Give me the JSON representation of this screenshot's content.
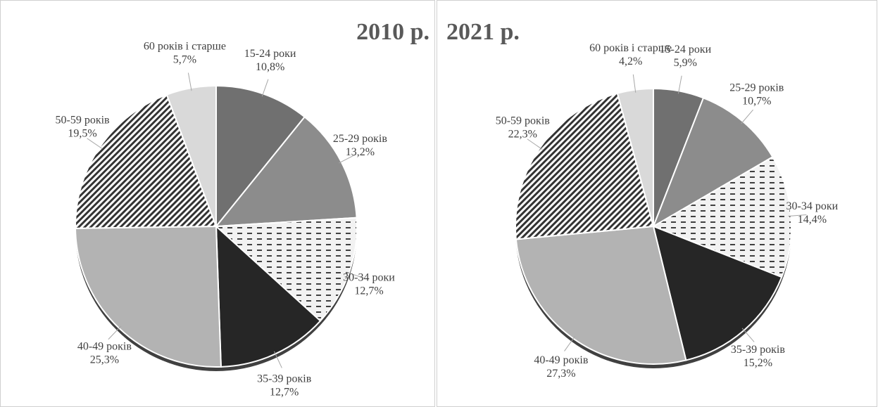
{
  "chart_data": [
    {
      "type": "pie",
      "title": "2010 р.",
      "categories": [
        "15-24 роки",
        "25-29 років",
        "30-34 роки",
        "35-39 років",
        "40-49 років",
        "50-59 років",
        "60 років і старше"
      ],
      "values": [
        10.8,
        13.2,
        12.7,
        12.7,
        25.3,
        19.5,
        5.7
      ],
      "value_labels": [
        "10,8%",
        "13,2%",
        "12,7%",
        "12,7%",
        "25,3%",
        "19,5%",
        "5,7%"
      ],
      "colors": [
        "#707070",
        "#8c8c8c",
        "#ffffff",
        "#262626",
        "#b3b3b3",
        "#ffffff",
        "#d9d9d9"
      ],
      "patterns": [
        null,
        null,
        "dashes",
        null,
        null,
        "stripes",
        null
      ]
    },
    {
      "type": "pie",
      "title": "2021 р.",
      "categories": [
        "15-24 роки",
        "25-29 років",
        "30-34 роки",
        "35-39 років",
        "40-49 років",
        "50-59 років",
        "60 років і старше"
      ],
      "values": [
        5.9,
        10.7,
        14.4,
        15.2,
        27.3,
        22.3,
        4.2
      ],
      "value_labels": [
        "5,9%",
        "10,7%",
        "14,4%",
        "15,2%",
        "27,3%",
        "22,3%",
        "4,2%"
      ],
      "colors": [
        "#707070",
        "#8c8c8c",
        "#ffffff",
        "#262626",
        "#b3b3b3",
        "#ffffff",
        "#d9d9d9"
      ],
      "patterns": [
        null,
        null,
        "dashes",
        null,
        null,
        "stripes",
        null
      ]
    }
  ]
}
